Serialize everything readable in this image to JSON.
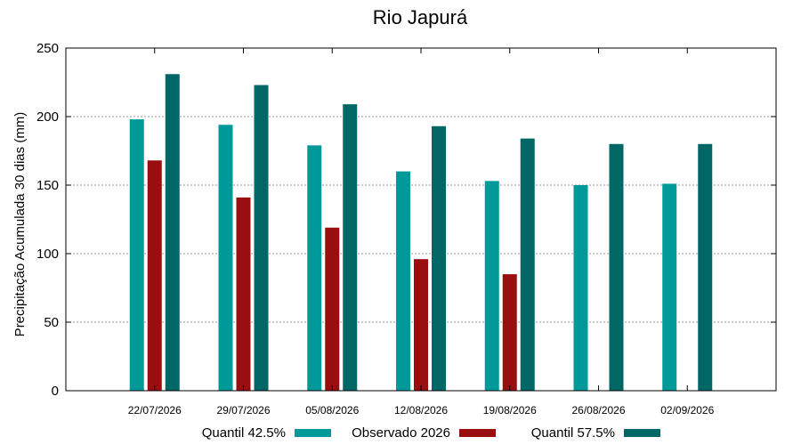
{
  "chart_data": {
    "type": "bar",
    "title": "Rio Japurá",
    "xlabel": "",
    "ylabel": "Precipitação Acumulada 30 dias (mm)",
    "ylim": [
      0,
      250
    ],
    "yticks": [
      0,
      50,
      100,
      150,
      200,
      250
    ],
    "grid": true,
    "legend_position": "bottom",
    "categories": [
      "22/07/2026",
      "29/07/2026",
      "05/08/2026",
      "12/08/2026",
      "19/08/2026",
      "26/08/2026",
      "02/09/2026"
    ],
    "series": [
      {
        "name": "Quantil 42.5%",
        "color": "#009999",
        "values": [
          198,
          194,
          179,
          160,
          153,
          150,
          151
        ]
      },
      {
        "name": "Observado 2026",
        "color": "#990f0f",
        "values": [
          168,
          141,
          119,
          96,
          85,
          null,
          null
        ]
      },
      {
        "name": "Quantil 57.5%",
        "color": "#006666",
        "values": [
          231,
          223,
          209,
          193,
          184,
          180,
          180
        ]
      }
    ]
  }
}
